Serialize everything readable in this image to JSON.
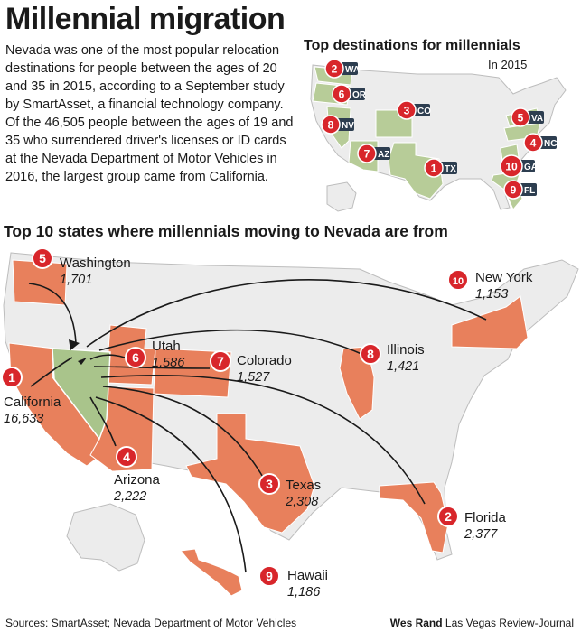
{
  "title": "Millennial migration",
  "intro": "Nevada was one of the most popular relocation destinations for people between the ages of 20 and 35 in 2015, according to a September study by SmartAsset, a financial technology company. Of the 46,505 people between the ages of 19 and 35 who surrendered driver's licenses or ID cards at the Nevada Department of Motor Vehicles in 2016, the largest group came from California.",
  "destinations": {
    "title": "Top destinations for millennials",
    "year": "In 2015",
    "items": [
      {
        "rank": "2",
        "state": "WA"
      },
      {
        "rank": "6",
        "state": "OR"
      },
      {
        "rank": "3",
        "state": "CO"
      },
      {
        "rank": "8",
        "state": "NV"
      },
      {
        "rank": "5",
        "state": "VA"
      },
      {
        "rank": "4",
        "state": "NC"
      },
      {
        "rank": "7",
        "state": "AZ"
      },
      {
        "rank": "1",
        "state": "TX"
      },
      {
        "rank": "10",
        "state": "GA"
      },
      {
        "rank": "9",
        "state": "FL"
      }
    ]
  },
  "main": {
    "title": "Top 10 states where millennials moving to Nevada are from",
    "origins": [
      {
        "rank": "1",
        "state": "California",
        "count": "16,633"
      },
      {
        "rank": "2",
        "state": "Florida",
        "count": "2,377"
      },
      {
        "rank": "3",
        "state": "Texas",
        "count": "2,308"
      },
      {
        "rank": "4",
        "state": "Arizona",
        "count": "2,222"
      },
      {
        "rank": "5",
        "state": "Washington",
        "count": "1,701"
      },
      {
        "rank": "6",
        "state": "Utah",
        "count": "1,586"
      },
      {
        "rank": "7",
        "state": "Colorado",
        "count": "1,527"
      },
      {
        "rank": "8",
        "state": "Illinois",
        "count": "1,421"
      },
      {
        "rank": "9",
        "state": "Hawaii",
        "count": "1,186"
      },
      {
        "rank": "10",
        "state": "New York",
        "count": "1,153"
      }
    ]
  },
  "footer": {
    "sources": "Sources: SmartAsset; Nevada Department of Motor Vehicles",
    "author": "Wes Rand",
    "publication": "Las Vegas Review-Journal"
  },
  "colors": {
    "origin_fill": "#e8805c",
    "nevada_fill": "#a9c48b",
    "dest_fill": "#b7cc98",
    "land": "#ececec",
    "badge_red": "#d8262b",
    "badge_dark": "#2d3e50"
  }
}
